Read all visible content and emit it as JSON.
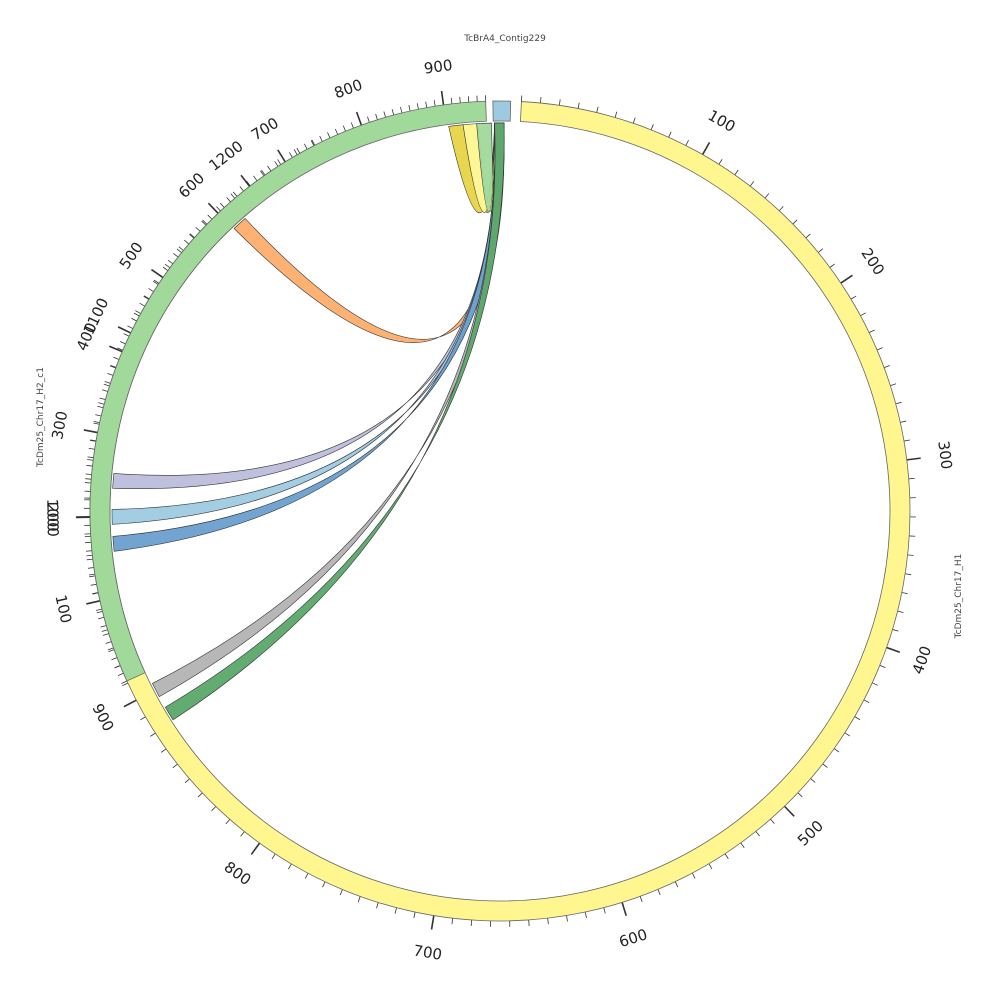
{
  "chart_data": {
    "type": "chord",
    "segments": [
      {
        "id": "seg-h1",
        "name": "TcDm25_Chr17_H1",
        "length": 1240,
        "color": "#fff68f",
        "tick_labels": [
          "100",
          "200",
          "300",
          "400",
          "500",
          "600",
          "700",
          "800",
          "900",
          "1000",
          "1100",
          "1200"
        ]
      },
      {
        "id": "seg-h2",
        "name": "TcDm25_Chr17_H2_c1",
        "length": 950,
        "color": "#a1d99b",
        "tick_labels": [
          "100",
          "200",
          "300",
          "400",
          "500",
          "600",
          "700",
          "800",
          "900"
        ]
      },
      {
        "id": "seg-contig",
        "name": "TcBrA4_Contig229",
        "length": 10,
        "color": "#9ecae1",
        "tick_labels": []
      }
    ],
    "links": [
      {
        "id": "link-yellow-a",
        "color": "#e7d446",
        "source": "contig",
        "target": "h2",
        "target_pos": 912
      },
      {
        "id": "link-yellow-b",
        "color": "#fff68f",
        "source": "contig",
        "target": "h2",
        "target_pos": 930
      },
      {
        "id": "link-green-light",
        "color": "#a1d99b",
        "source": "contig",
        "target": "h2",
        "target_pos": 947
      },
      {
        "id": "link-orange",
        "color": "#fdae6b",
        "source": "contig",
        "target": "h1",
        "target_pos": 1183
      },
      {
        "id": "link-purple",
        "color": "#bcbddc",
        "source": "contig",
        "target": "h1",
        "target_pos": 1020
      },
      {
        "id": "link-lightblue",
        "color": "#9ecae1",
        "source": "contig",
        "target": "h1",
        "target_pos": 1000
      },
      {
        "id": "link-blue",
        "color": "#6a9fcf",
        "source": "contig",
        "target": "h1",
        "target_pos": 985
      },
      {
        "id": "link-gray",
        "color": "#b3b3b3",
        "source": "contig",
        "target": "h1",
        "target_pos": 900
      },
      {
        "id": "link-green-dark",
        "color": "#5aa86a",
        "source": "contig",
        "target": "h1",
        "target_pos": 885
      }
    ]
  }
}
